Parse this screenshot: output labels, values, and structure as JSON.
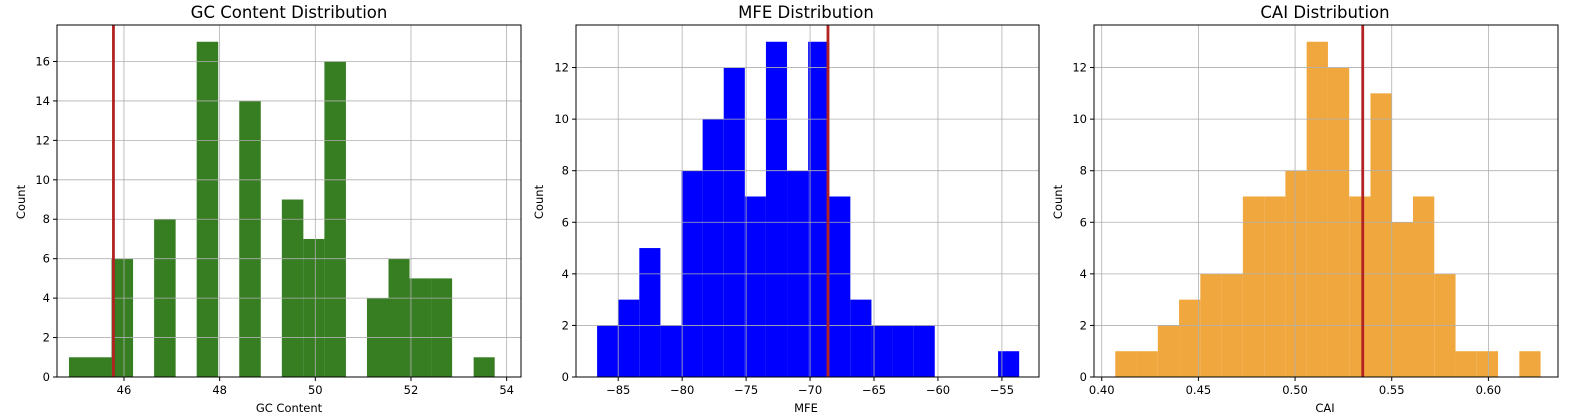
{
  "chart_data": [
    {
      "type": "histogram",
      "title": "GC Content Distribution",
      "xlabel": "GC Content",
      "ylabel": "Count",
      "color": "#377d22",
      "marker_color": "#b22222",
      "marker_x": 45.78,
      "grid": true,
      "xlim": [
        44.6,
        54.3
      ],
      "ylim": [
        0,
        17.85
      ],
      "xticks": [
        46,
        48,
        50,
        52,
        54
      ],
      "yticks": [
        0,
        2,
        4,
        6,
        8,
        10,
        12,
        14,
        16
      ],
      "bins": [
        {
          "x0": 44.85,
          "x1": 45.3,
          "count": 1
        },
        {
          "x0": 45.3,
          "x1": 45.74,
          "count": 1
        },
        {
          "x0": 45.74,
          "x1": 46.19,
          "count": 6
        },
        {
          "x0": 46.19,
          "x1": 46.63,
          "count": 0
        },
        {
          "x0": 46.63,
          "x1": 47.08,
          "count": 8
        },
        {
          "x0": 47.08,
          "x1": 47.52,
          "count": 0
        },
        {
          "x0": 47.52,
          "x1": 47.97,
          "count": 17
        },
        {
          "x0": 47.97,
          "x1": 48.41,
          "count": 0
        },
        {
          "x0": 48.41,
          "x1": 48.86,
          "count": 14
        },
        {
          "x0": 48.86,
          "x1": 49.3,
          "count": 0
        },
        {
          "x0": 49.3,
          "x1": 49.75,
          "count": 9
        },
        {
          "x0": 49.75,
          "x1": 50.19,
          "count": 7
        },
        {
          "x0": 50.19,
          "x1": 50.64,
          "count": 16
        },
        {
          "x0": 50.64,
          "x1": 51.08,
          "count": 0
        },
        {
          "x0": 51.08,
          "x1": 51.53,
          "count": 4
        },
        {
          "x0": 51.53,
          "x1": 51.97,
          "count": 6
        },
        {
          "x0": 51.97,
          "x1": 52.42,
          "count": 5
        },
        {
          "x0": 52.42,
          "x1": 52.86,
          "count": 5
        },
        {
          "x0": 52.86,
          "x1": 53.31,
          "count": 0
        },
        {
          "x0": 53.31,
          "x1": 53.75,
          "count": 1
        }
      ]
    },
    {
      "type": "histogram",
      "title": "MFE Distribution",
      "xlabel": "MFE",
      "ylabel": "Count",
      "color": "#0000ff",
      "marker_color": "#b22222",
      "marker_x": -68.6,
      "grid": true,
      "xlim": [
        -88.3,
        -52.1
      ],
      "ylim": [
        0,
        13.65
      ],
      "xticks": [
        -85,
        -80,
        -75,
        -70,
        -65,
        -60,
        -55
      ],
      "yticks": [
        0,
        2,
        4,
        6,
        8,
        10,
        12
      ],
      "bins": [
        {
          "x0": -86.65,
          "x1": -85.0,
          "count": 2
        },
        {
          "x0": -85.0,
          "x1": -83.35,
          "count": 3
        },
        {
          "x0": -83.35,
          "x1": -81.7,
          "count": 5
        },
        {
          "x0": -81.7,
          "x1": -80.05,
          "count": 2
        },
        {
          "x0": -80.05,
          "x1": -78.4,
          "count": 8
        },
        {
          "x0": -78.4,
          "x1": -76.75,
          "count": 10
        },
        {
          "x0": -76.75,
          "x1": -75.1,
          "count": 12
        },
        {
          "x0": -75.1,
          "x1": -73.45,
          "count": 7
        },
        {
          "x0": -73.45,
          "x1": -71.8,
          "count": 13
        },
        {
          "x0": -71.8,
          "x1": -70.15,
          "count": 8
        },
        {
          "x0": -70.15,
          "x1": -68.5,
          "count": 13
        },
        {
          "x0": -68.5,
          "x1": -66.85,
          "count": 7
        },
        {
          "x0": -66.85,
          "x1": -65.2,
          "count": 3
        },
        {
          "x0": -65.2,
          "x1": -63.55,
          "count": 2
        },
        {
          "x0": -63.55,
          "x1": -61.9,
          "count": 2
        },
        {
          "x0": -61.9,
          "x1": -60.25,
          "count": 2
        },
        {
          "x0": -60.25,
          "x1": -58.6,
          "count": 0
        },
        {
          "x0": -58.6,
          "x1": -56.95,
          "count": 0
        },
        {
          "x0": -56.95,
          "x1": -55.3,
          "count": 0
        },
        {
          "x0": -55.3,
          "x1": -53.65,
          "count": 1
        }
      ]
    },
    {
      "type": "histogram",
      "title": "CAI Distribution",
      "xlabel": "CAI",
      "ylabel": "Count",
      "color": "#f0a73e",
      "marker_color": "#b22222",
      "marker_x": 0.535,
      "grid": true,
      "xlim": [
        0.396,
        0.636
      ],
      "ylim": [
        0,
        13.65
      ],
      "xticks": [
        "0.40",
        "0.45",
        "0.50",
        "0.55",
        "0.60"
      ],
      "yticks": [
        0,
        2,
        4,
        6,
        8,
        10,
        12
      ],
      "bins": [
        {
          "x0": 0.407,
          "x1": 0.418,
          "count": 1
        },
        {
          "x0": 0.418,
          "x1": 0.429,
          "count": 1
        },
        {
          "x0": 0.429,
          "x1": 0.44,
          "count": 2
        },
        {
          "x0": 0.44,
          "x1": 0.451,
          "count": 3
        },
        {
          "x0": 0.451,
          "x1": 0.462,
          "count": 4
        },
        {
          "x0": 0.462,
          "x1": 0.473,
          "count": 4
        },
        {
          "x0": 0.473,
          "x1": 0.484,
          "count": 7
        },
        {
          "x0": 0.484,
          "x1": 0.495,
          "count": 7
        },
        {
          "x0": 0.495,
          "x1": 0.506,
          "count": 8
        },
        {
          "x0": 0.506,
          "x1": 0.517,
          "count": 13
        },
        {
          "x0": 0.517,
          "x1": 0.528,
          "count": 12
        },
        {
          "x0": 0.528,
          "x1": 0.539,
          "count": 7
        },
        {
          "x0": 0.539,
          "x1": 0.55,
          "count": 11
        },
        {
          "x0": 0.55,
          "x1": 0.561,
          "count": 6
        },
        {
          "x0": 0.561,
          "x1": 0.572,
          "count": 7
        },
        {
          "x0": 0.572,
          "x1": 0.583,
          "count": 4
        },
        {
          "x0": 0.583,
          "x1": 0.594,
          "count": 1
        },
        {
          "x0": 0.594,
          "x1": 0.605,
          "count": 1
        },
        {
          "x0": 0.605,
          "x1": 0.616,
          "count": 0
        },
        {
          "x0": 0.616,
          "x1": 0.627,
          "count": 1
        }
      ]
    }
  ]
}
